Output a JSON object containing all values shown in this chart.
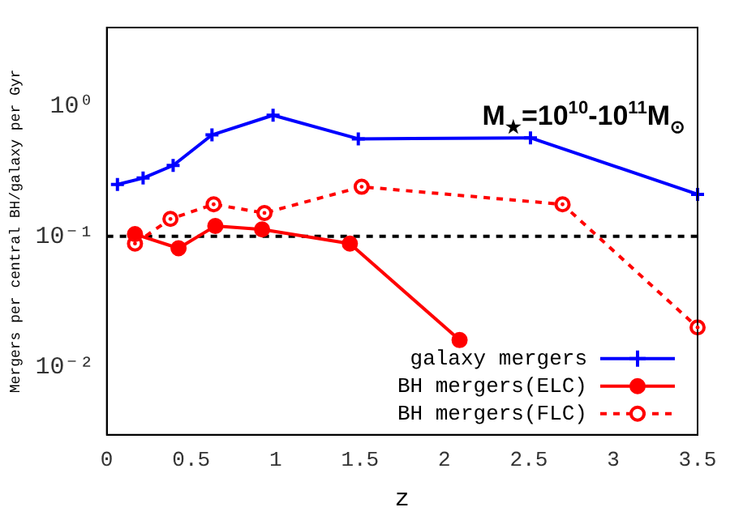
{
  "chart_data": {
    "type": "line",
    "xlabel": "z",
    "ylabel": "Mergers per central BH/galaxy per Gyr",
    "xlim": [
      0,
      3.5
    ],
    "xticks": [
      0,
      0.5,
      1,
      1.5,
      2,
      2.5,
      3,
      3.5
    ],
    "ylim": [
      0.003,
      4
    ],
    "yticks": [
      {
        "value": 0.01,
        "label": "10⁻²"
      },
      {
        "value": 0.1,
        "label": "10⁻¹"
      },
      {
        "value": 1,
        "label": "10⁰"
      }
    ],
    "log": "y",
    "grid": false,
    "legend": "bottom right",
    "annotations": [
      "M$_{★}$=10$^{10}$-10$^{11}$M$_{⊙}$"
    ],
    "ref_lines": [
      {
        "axis": "y",
        "value": 0.1,
        "color": "#000000",
        "line_style": "dashed"
      }
    ],
    "series": [
      {
        "name": "galaxy mergers",
        "color": "#0000ff",
        "marker": "cross",
        "line_style": "solid",
        "x": [
          0.063,
          0.215,
          0.393,
          0.623,
          0.985,
          1.49,
          2.51,
          3.5
        ],
        "values": [
          0.25,
          0.28,
          0.35,
          0.6,
          0.85,
          0.56,
          0.57,
          0.21
        ]
      },
      {
        "name": "BH mergers(ELC)",
        "color": "#ff0000",
        "marker": "circle",
        "line_style": "solid",
        "x": [
          0.167,
          0.425,
          0.643,
          0.92,
          1.44,
          2.09
        ],
        "values": [
          0.104,
          0.081,
          0.12,
          0.113,
          0.088,
          0.016
        ]
      },
      {
        "name": "BH mergers(FLC)",
        "color": "#ff0000",
        "marker": "circle",
        "line_style": "dashed",
        "x": [
          0.167,
          0.377,
          0.633,
          0.934,
          1.51,
          2.7,
          3.5
        ],
        "values": [
          0.088,
          0.136,
          0.176,
          0.151,
          0.24,
          0.176,
          0.02
        ]
      }
    ]
  }
}
